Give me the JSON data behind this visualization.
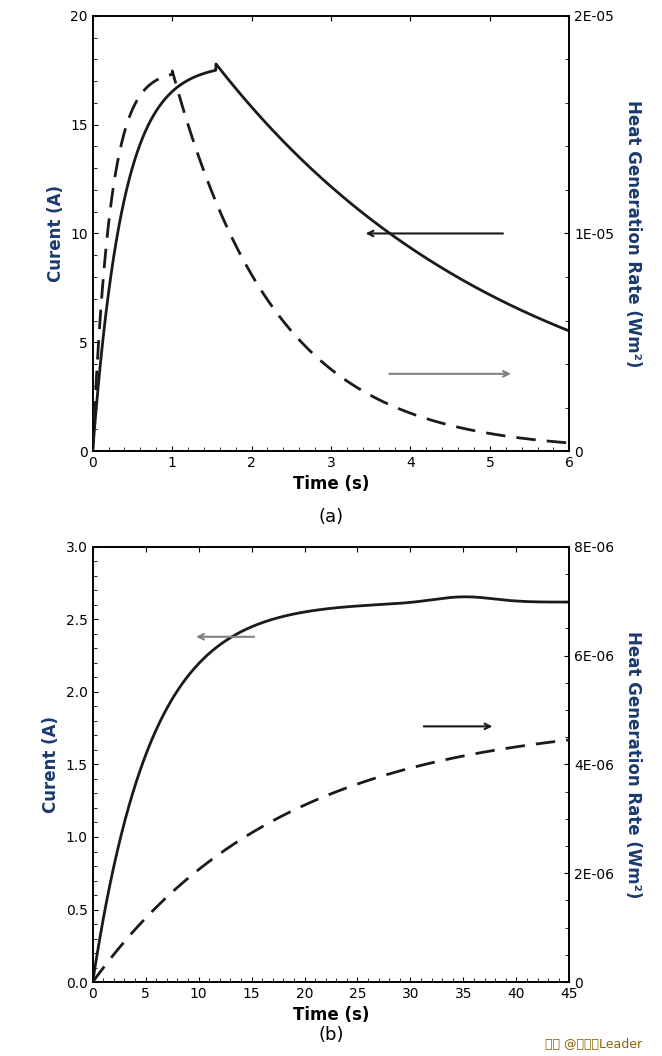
{
  "panel_a": {
    "xlabel": "Time (s)",
    "ylabel_left": "Curent (A)",
    "ylabel_right": "Heat Generation Rate (Wm²)",
    "xlim": [
      0,
      6
    ],
    "ylim_left": [
      0,
      20
    ],
    "ylim_right": [
      0,
      2e-05
    ],
    "yticks_left": [
      0,
      5,
      10,
      15,
      20
    ],
    "yticks_right": [
      0,
      1e-05,
      2e-05
    ],
    "ytick_labels_right": [
      "0",
      "1E-05",
      "2E-05"
    ],
    "xticks": [
      0,
      1,
      2,
      3,
      4,
      5,
      6
    ],
    "label": "(a)"
  },
  "panel_b": {
    "xlabel": "Time (s)",
    "ylabel_left": "Curent (A)",
    "ylabel_right": "Heat Generation Rate (Wm²)",
    "xlim": [
      0,
      45
    ],
    "ylim_left": [
      0,
      3
    ],
    "ylim_right": [
      0,
      8e-06
    ],
    "yticks_left": [
      0,
      0.5,
      1.0,
      1.5,
      2.0,
      2.5,
      3.0
    ],
    "yticks_right": [
      0,
      2e-06,
      4e-06,
      6e-06,
      8e-06
    ],
    "ytick_labels_right": [
      "0",
      "2E-06",
      "4E-06",
      "6E-06",
      "8E-06"
    ],
    "xticks": [
      0,
      5,
      10,
      15,
      20,
      25,
      30,
      35,
      40,
      45
    ],
    "label": "(b)"
  },
  "watermark": "头条 @新能源Leader",
  "line_color": "#1a1a1a",
  "label_color": "#1a3a6e",
  "figure_bg": "#ffffff"
}
